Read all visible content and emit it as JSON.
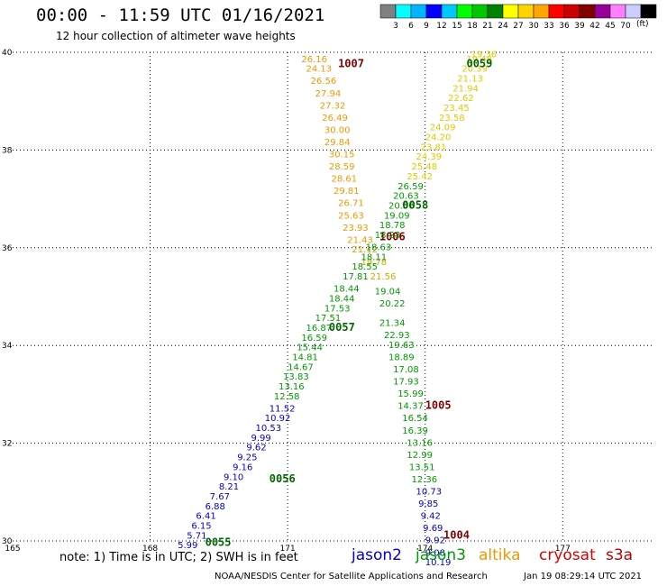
{
  "header": {
    "title": "00:00 - 11:59 UTC 01/16/2021",
    "subtitle": "12 hour collection of altimeter wave heights"
  },
  "legend": {
    "units": "(ft)",
    "colors": [
      "#808080",
      "#00ffff",
      "#00b4ff",
      "#0000ff",
      "#00c8ff",
      "#00ff00",
      "#00c800",
      "#008200",
      "#ffff00",
      "#ffd200",
      "#ffa500",
      "#ff0000",
      "#cc0000",
      "#800000",
      "#990099",
      "#ff80ff",
      "#ccccff",
      "#000000"
    ],
    "labels": [
      "3",
      "6",
      "9",
      "12",
      "15",
      "18",
      "21",
      "24",
      "27",
      "30",
      "33",
      "36",
      "39",
      "42",
      "45",
      "70"
    ]
  },
  "footer": {
    "note": "note: 1) Time is in UTC; 2) SWH is in feet",
    "satellites": [
      "jason2",
      "jason3",
      "altika",
      "cryosat",
      "s3a"
    ],
    "credit": "NOAA/NESDIS Center for Satellite Applications and Research",
    "timestamp": "Jan 19 08:29:14 UTC 2021"
  },
  "chart_data": {
    "type": "scatter",
    "title": "00:00 - 11:59 UTC 01/16/2021",
    "subtitle": "12 hour collection of altimeter wave heights",
    "xlim": [
      165,
      179
    ],
    "ylim": [
      30,
      40
    ],
    "x_ticks": [
      165,
      168,
      171,
      174,
      177
    ],
    "x_tick_labels": [
      "165",
      "168",
      "171",
      "174",
      "177"
    ],
    "y_ticks": [
      30,
      32,
      34,
      36,
      38,
      40
    ],
    "y_tick_labels": [
      "30",
      "32",
      "34",
      "36",
      "38",
      "40"
    ],
    "grid": true,
    "tracks": [
      {
        "label": "1007",
        "label_pos": [
          172.1,
          39.7
        ],
        "label_color": "#800000",
        "color": "#ee9900",
        "points": [
          [
            171.3,
            39.8,
            "26.16"
          ],
          [
            171.4,
            39.6,
            "24.13"
          ],
          [
            171.5,
            39.35,
            "26.56"
          ],
          [
            171.6,
            39.1,
            "27.94"
          ],
          [
            171.7,
            38.85,
            "27.32"
          ],
          [
            171.75,
            38.6,
            "26.49"
          ],
          [
            171.8,
            38.35,
            "30.00"
          ],
          [
            171.8,
            38.1,
            "29.84"
          ],
          [
            171.9,
            37.85,
            "30.15"
          ],
          [
            171.9,
            37.6,
            "28.59"
          ],
          [
            171.95,
            37.35,
            "28.61"
          ],
          [
            172.0,
            37.1,
            "29.81"
          ],
          [
            172.1,
            36.85,
            "26.71"
          ],
          [
            172.1,
            36.6,
            "25.63"
          ],
          [
            172.2,
            36.35,
            "23.93"
          ],
          [
            172.3,
            36.1,
            "21.43"
          ]
        ]
      },
      {
        "label": "1006",
        "label_pos": [
          173.0,
          36.15
        ],
        "label_color": "#800000",
        "color": "#ccaa00",
        "points": [
          [
            172.4,
            35.9,
            "21.12"
          ],
          [
            172.6,
            35.65,
            "19.78"
          ],
          [
            172.8,
            35.35,
            "21.56"
          ]
        ]
      },
      {
        "label": "1005",
        "label_pos": [
          174.0,
          32.7
        ],
        "label_color": "#800000",
        "color": "#009900",
        "points": [
          [
            172.9,
            35.05,
            "19.04"
          ],
          [
            173.0,
            34.8,
            "20.22"
          ],
          [
            173.0,
            34.4,
            "21.34"
          ],
          [
            173.1,
            34.15,
            "22.93"
          ],
          [
            173.2,
            33.95,
            "19.63"
          ],
          [
            173.2,
            33.7,
            "18.89"
          ],
          [
            173.3,
            33.45,
            "17.08"
          ],
          [
            173.3,
            33.2,
            "17.93"
          ],
          [
            173.4,
            32.95,
            "15.99"
          ],
          [
            173.4,
            32.7,
            "14.37"
          ],
          [
            173.5,
            32.45,
            "16.54"
          ],
          [
            173.5,
            32.2,
            "16.39"
          ],
          [
            173.6,
            31.95,
            "13.16"
          ],
          [
            173.6,
            31.7,
            "12.99"
          ],
          [
            173.65,
            31.45,
            "13.51"
          ],
          [
            173.7,
            31.2,
            "12.36"
          ]
        ]
      },
      {
        "label": "1004",
        "label_pos": [
          174.4,
          30.05
        ],
        "label_color": "#800000",
        "color": "#0000cc",
        "points": [
          [
            173.8,
            30.95,
            "10.73"
          ],
          [
            173.85,
            30.7,
            "9.85"
          ],
          [
            173.9,
            30.45,
            "9.42"
          ],
          [
            173.95,
            30.2,
            "9.69"
          ],
          [
            174.0,
            29.95,
            "9.92"
          ],
          [
            174.0,
            29.7,
            "9.08"
          ],
          [
            174.0,
            29.5,
            "10.19"
          ]
        ]
      },
      {
        "label": "0059",
        "label_pos": [
          174.9,
          39.7
        ],
        "label_color": "#006600",
        "color": "#ddcc00",
        "points": [
          [
            175.0,
            39.9,
            "19.36"
          ],
          [
            174.9,
            39.8,
            "19.48"
          ],
          [
            174.8,
            39.6,
            "20.39"
          ],
          [
            174.7,
            39.4,
            "21.13"
          ],
          [
            174.6,
            39.2,
            "21.94"
          ],
          [
            174.5,
            39.0,
            "22.62"
          ],
          [
            174.4,
            38.8,
            "23.45"
          ],
          [
            174.3,
            38.6,
            "23.58"
          ],
          [
            174.1,
            38.4,
            "24.09"
          ],
          [
            174.0,
            38.2,
            "24.20"
          ],
          [
            173.9,
            38.0,
            "23.81"
          ],
          [
            173.8,
            37.8,
            "24.39"
          ],
          [
            173.7,
            37.6,
            "25.48"
          ],
          [
            173.6,
            37.4,
            "25.42"
          ]
        ]
      },
      {
        "label": "0058",
        "label_pos": [
          173.5,
          36.8
        ],
        "label_color": "#006600",
        "color": "#009900",
        "points": [
          [
            173.4,
            37.2,
            "26.59"
          ],
          [
            173.3,
            37.0,
            "20.63"
          ],
          [
            173.2,
            36.8,
            "20.56"
          ],
          [
            173.1,
            36.6,
            "19.09"
          ],
          [
            173.0,
            36.4,
            "18.78"
          ],
          [
            172.9,
            36.2,
            "18.23"
          ],
          [
            172.7,
            35.95,
            "18.63"
          ],
          [
            172.6,
            35.75,
            "18.11"
          ]
        ]
      },
      {
        "label": "0057",
        "label_pos": [
          171.9,
          34.3
        ],
        "label_color": "#006600",
        "color": "#009900",
        "points": [
          [
            172.4,
            35.55,
            "18.55"
          ],
          [
            172.2,
            35.35,
            "17.81"
          ],
          [
            172.0,
            35.1,
            "18.44"
          ],
          [
            171.9,
            34.9,
            "18.44"
          ],
          [
            171.8,
            34.7,
            "17.53"
          ],
          [
            171.6,
            34.5,
            "17.51"
          ],
          [
            171.4,
            34.3,
            "16.87"
          ],
          [
            171.3,
            34.1,
            "16.59"
          ],
          [
            171.2,
            33.9,
            "15.44"
          ],
          [
            171.1,
            33.7,
            "14.81"
          ],
          [
            171.0,
            33.5,
            "14.67"
          ],
          [
            170.9,
            33.3,
            "13.83"
          ],
          [
            170.8,
            33.1,
            "13.16"
          ],
          [
            170.7,
            32.9,
            "12.58"
          ]
        ]
      },
      {
        "label": "0056",
        "label_pos": [
          170.6,
          31.2
        ],
        "label_color": "#006600",
        "color": "#0000cc",
        "points": [
          [
            170.6,
            32.65,
            "11.52"
          ],
          [
            170.5,
            32.45,
            "10.92"
          ],
          [
            170.3,
            32.25,
            "10.53"
          ],
          [
            170.2,
            32.05,
            "9.99"
          ],
          [
            170.1,
            31.85,
            "9.62"
          ],
          [
            169.9,
            31.65,
            "9.25"
          ],
          [
            169.8,
            31.45,
            "9.16"
          ],
          [
            169.6,
            31.25,
            "9.10"
          ],
          [
            169.5,
            31.05,
            "8.21"
          ],
          [
            169.3,
            30.85,
            "7.67"
          ],
          [
            169.2,
            30.65,
            "6.88"
          ],
          [
            169.0,
            30.45,
            "6.41"
          ],
          [
            168.9,
            30.25,
            "6.15"
          ],
          [
            168.8,
            30.05,
            "5.71"
          ],
          [
            168.6,
            29.85,
            "5.99"
          ]
        ]
      },
      {
        "label": "0055",
        "label_pos": [
          169.2,
          29.9
        ],
        "label_color": "#006600",
        "color": "#009900",
        "points": []
      }
    ]
  }
}
